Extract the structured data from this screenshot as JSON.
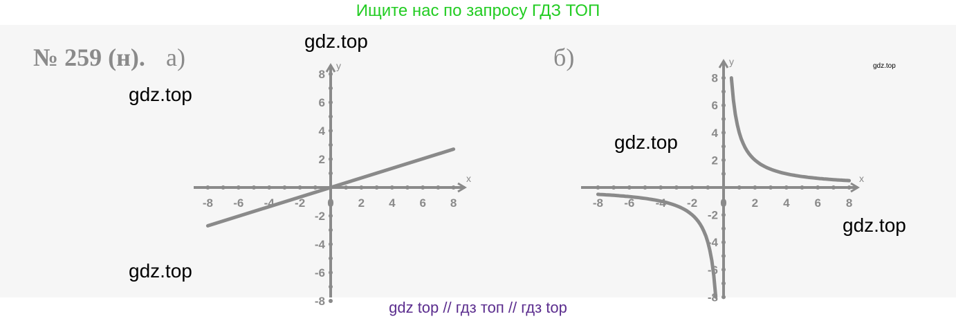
{
  "banner": "Ищите нас по запросу ГДЗ ТОП",
  "problem": {
    "number": "№ 259 (н).",
    "part_a": "а)",
    "part_b": "б)"
  },
  "watermarks": [
    "gdz.top",
    "gdz.top",
    "gdz.top",
    "gdz.top",
    "gdz.top",
    "gdz.top"
  ],
  "footer": "gdz top  //  гдз топ  //  гдз top",
  "colors": {
    "banner": "#22cc22",
    "footer": "#5b2d8e",
    "ink": "#8a8a8a"
  },
  "chart_data": [
    {
      "type": "line",
      "x_label": "x",
      "y_label": "y",
      "xlim": [
        -8,
        8
      ],
      "ylim": [
        -8,
        8
      ],
      "x_ticks": [
        "-8",
        "-6",
        "-4",
        "-2",
        "0",
        "2",
        "4",
        "6",
        "8"
      ],
      "y_ticks": [
        "8",
        "6",
        "4",
        "2",
        "-2",
        "-4",
        "-6",
        "-8"
      ],
      "series": [
        {
          "x": [
            -8,
            8
          ],
          "y": [
            -2.7,
            2.7
          ]
        }
      ]
    },
    {
      "type": "line",
      "x_label": "x",
      "y_label": "y",
      "xlim": [
        -8,
        8
      ],
      "ylim": [
        -8,
        8
      ],
      "x_ticks": [
        "-8",
        "-6",
        "-4",
        "-2",
        "0",
        "2",
        "4",
        "6",
        "8"
      ],
      "y_ticks": [
        "8",
        "6",
        "4",
        "2",
        "-2",
        "-4",
        "-6",
        "-8"
      ],
      "series": [
        {
          "function": "y = 4/x",
          "x_min": 0.5,
          "x_max": 8
        },
        {
          "function": "y = 4/x",
          "x_min": -8,
          "x_max": -0.5
        }
      ]
    }
  ]
}
